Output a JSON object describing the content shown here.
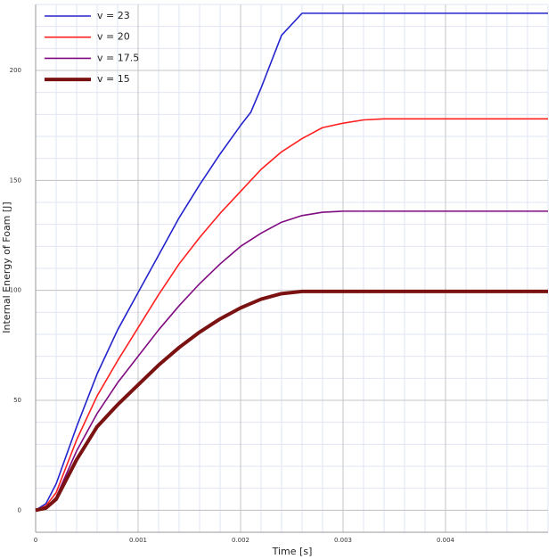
{
  "chart_data": {
    "type": "line",
    "xlabel": "Time [s]",
    "ylabel": "Internal Energy of Foam [J]",
    "x": [
      0,
      0.0001,
      0.0002,
      0.0004,
      0.0006,
      0.0008,
      0.001,
      0.0012,
      0.0014,
      0.0016,
      0.0018,
      0.002,
      0.0021,
      0.0022,
      0.0024,
      0.0026,
      0.0028,
      0.003,
      0.0032,
      0.0034,
      0.005
    ],
    "series": [
      {
        "name": "v = 23",
        "color": "#2424cc",
        "width": 1.6,
        "values": [
          0,
          3,
          12,
          38,
          62,
          82,
          99,
          116,
          133,
          148,
          162,
          175,
          181,
          192,
          216,
          226,
          226,
          226,
          226,
          226,
          226
        ]
      },
      {
        "name": "v = 20",
        "color": "#ff2020",
        "width": 1.6,
        "values": [
          0,
          2,
          8,
          32,
          52,
          68,
          83,
          98,
          112,
          124,
          135,
          145,
          150,
          155,
          163,
          169,
          174,
          176,
          177.5,
          178,
          178
        ]
      },
      {
        "name": "v = 17.5",
        "color": "#800a80",
        "width": 1.6,
        "values": [
          0,
          1,
          6,
          27,
          44,
          58,
          70,
          82,
          93,
          103,
          112,
          120,
          123,
          126,
          131,
          134,
          135.5,
          136,
          136,
          136,
          136
        ]
      },
      {
        "name": "v = 15",
        "color": "#7a1212",
        "width": 4,
        "values": [
          0,
          1,
          5,
          23,
          38,
          48,
          57,
          66,
          74,
          81,
          87,
          92,
          94,
          96,
          98.5,
          99.5,
          99.5,
          99.5,
          99.5,
          99.5,
          99.5
        ]
      }
    ],
    "xlim": [
      0,
      0.005
    ],
    "ylim": [
      -10,
      230
    ],
    "xticks": [
      0,
      0.001,
      0.002,
      0.003,
      0.004
    ],
    "yticks": [
      0,
      50,
      100,
      150,
      200
    ],
    "grid": true,
    "minor_divisions": 5,
    "legend": "upper left"
  }
}
